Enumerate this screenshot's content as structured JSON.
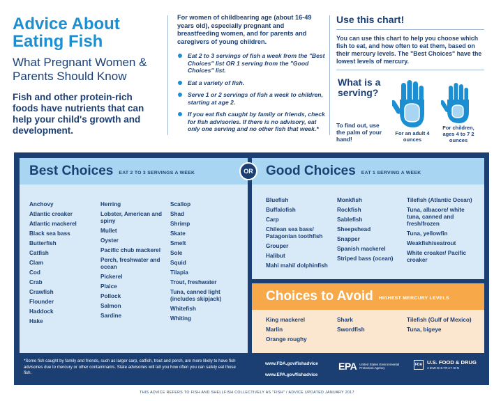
{
  "header": {
    "title": "Advice About Eating Fish",
    "subtitle": "What Pregnant Women & Parents Should Know",
    "intro": "Fish and other protein-rich foods have nutrients that can help your child's growth and development."
  },
  "advice": {
    "intro": "For women of childbearing age (about 16-49 years old), especially pregnant and breastfeeding women, and for parents and caregivers of young children.",
    "bullets": [
      "Eat 2 to 3 servings of fish a week from the \"Best Choices\" list OR 1 serving from the \"Good Choices\" list.",
      "Eat a variety of fish.",
      "Serve 1 or 2 servings of fish a week to children, starting at age 2.",
      "If you eat fish caught by family or friends, check for fish advisories. If there is no advisory, eat only one serving and no other fish that week.*"
    ]
  },
  "use_chart": {
    "title": "Use this chart!",
    "text": "You can use this chart to help you choose which fish to eat, and how often to eat them, based on their mercury levels. The \"Best Choices\" have the lowest levels of mercury.",
    "serving_title": "What is a serving?",
    "serving_text": "To find out, use the palm of your hand!",
    "adult_caption": "For an adult 4 ounces",
    "child_caption": "For children, ages 4 to 7 2 ounces"
  },
  "best": {
    "title": "Best Choices",
    "subtitle": "EAT 2 TO 3 SERVINGS A WEEK",
    "col1": [
      "Anchovy",
      "Atlantic croaker",
      "Atlantic mackerel",
      "Black sea bass",
      "Butterfish",
      "Catfish",
      "Clam",
      "Cod",
      "Crab",
      "Crawfish",
      "Flounder",
      "Haddock",
      "Hake"
    ],
    "col2": [
      "Herring",
      "Lobster, American and spiny",
      "Mullet",
      "Oyster",
      "Pacific chub mackerel",
      "Perch, freshwater and ocean",
      "Pickerel",
      "Plaice",
      "Pollock",
      "Salmon",
      "Sardine"
    ],
    "col3": [
      "Scallop",
      "Shad",
      "Shrimp",
      "Skate",
      "Smelt",
      "Sole",
      "Squid",
      "Tilapia",
      "Trout, freshwater",
      "Tuna, canned light (includes skipjack)",
      "Whitefish",
      "Whiting"
    ]
  },
  "or_label": "OR",
  "good": {
    "title": "Good Choices",
    "subtitle": "EAT 1 SERVING A WEEK",
    "col1": [
      "Bluefish",
      "Buffalofish",
      "Carp",
      "Chilean sea bass/ Patagonian toothfish",
      "Grouper",
      "Halibut",
      "Mahi mahi/ dolphinfish"
    ],
    "col2": [
      "Monkfish",
      "Rockfish",
      "Sablefish",
      "Sheepshead",
      "Snapper",
      "Spanish mackerel",
      "Striped bass (ocean)"
    ],
    "col3": [
      "Tilefish (Atlantic Ocean)",
      "Tuna, albacore/ white tuna, canned and fresh/frozen",
      "Tuna, yellowfin",
      "Weakfish/seatrout",
      "White croaker/ Pacific croaker"
    ]
  },
  "avoid": {
    "title": "Choices to Avoid",
    "subtitle": "HIGHEST MERCURY LEVELS",
    "col1": [
      "King mackerel",
      "Marlin",
      "Orange roughy"
    ],
    "col2": [
      "Shark",
      "Swordfish"
    ],
    "col3": [
      "Tilefish (Gulf of Mexico)",
      "Tuna, bigeye"
    ]
  },
  "footer": {
    "footnote": "*Some fish caught by family and friends, such as larger carp, catfish, trout and perch, are more likely to have fish advisories due to mercury or other contaminants. State advisories will tell you how often you can safely eat those fish.",
    "link1": "www.FDA.gov/fishadvice",
    "link2": "www.EPA.gov/fishadvice",
    "epa_mark": "EPA",
    "epa_text": "United States Environmental Protection Agency",
    "fda_box": "FDA",
    "fda_name": "U.S. FOOD & DRUG",
    "fda_sub": "ADMINISTRATION",
    "bottom_note": "THIS ADVICE REFERS TO FISH AND SHELLFISH COLLECTIVELY AS \"FISH\" / ADVICE UPDATED JANUARY 2017"
  },
  "colors": {
    "navy": "#1c3f73",
    "blue": "#1b8fd1",
    "light_blue": "#a8d6f2",
    "orange": "#f7a94a"
  }
}
